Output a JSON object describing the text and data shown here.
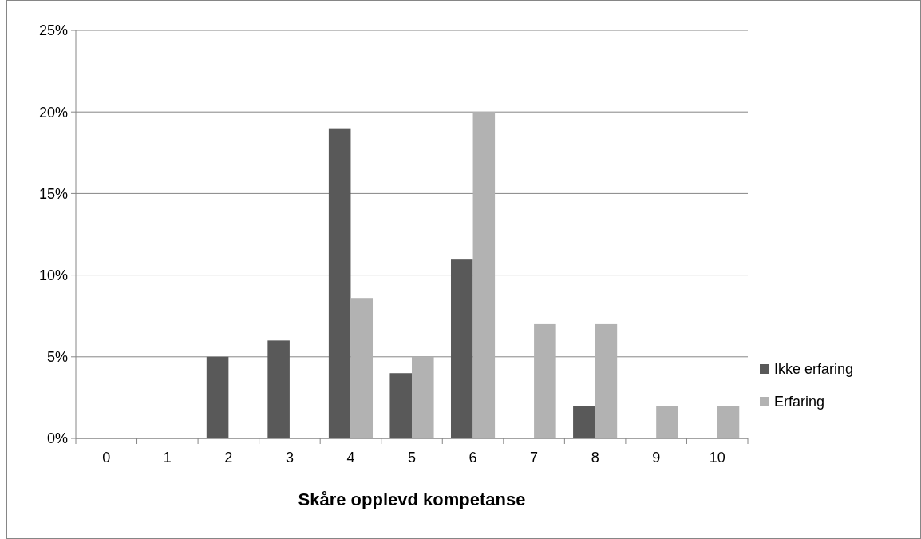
{
  "chart_data": {
    "type": "bar",
    "xlabel": "Skåre opplevd kompetanse",
    "categories": [
      "0",
      "1",
      "2",
      "3",
      "4",
      "5",
      "6",
      "7",
      "8",
      "9",
      "10"
    ],
    "series": [
      {
        "name": "Ikke erfaring",
        "color": "#595959",
        "values": [
          0,
          0,
          5,
          6,
          19,
          4,
          11,
          0,
          2,
          0,
          0
        ]
      },
      {
        "name": "Erfaring",
        "color": "#b2b2b2",
        "values": [
          0,
          0,
          0,
          0,
          8.6,
          5,
          20,
          7,
          7,
          2,
          2
        ]
      }
    ],
    "ylim": [
      0,
      25
    ],
    "yticks": [
      {
        "value": 0,
        "label": "0%"
      },
      {
        "value": 5,
        "label": "5%"
      },
      {
        "value": 10,
        "label": "10%"
      },
      {
        "value": 15,
        "label": "15%"
      },
      {
        "value": 20,
        "label": "20%"
      },
      {
        "value": 25,
        "label": "25%"
      }
    ],
    "grid": "y",
    "legend": "right"
  }
}
